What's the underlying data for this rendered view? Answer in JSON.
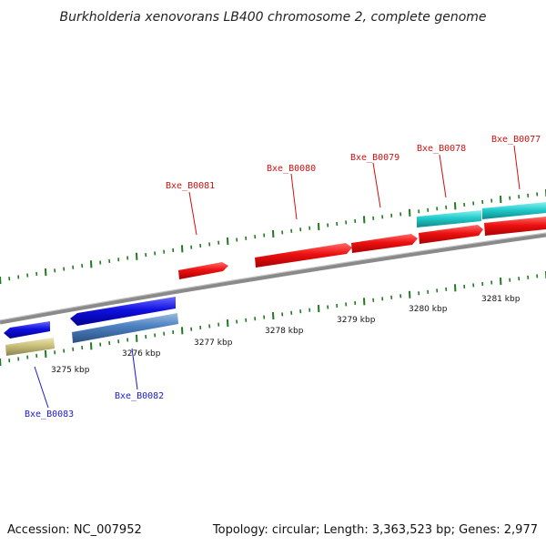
{
  "title": "Burkholderia xenovorans LB400 chromosome 2, complete genome",
  "footer": {
    "accession": "Accession: NC_007952",
    "stats": "Topology: circular; Length: 3,363,523 bp; Genes: 2,977"
  },
  "tick_labels": [
    "3275 kbp",
    "3276 kbp",
    "3277 kbp",
    "3278 kbp",
    "3279 kbp",
    "3280 kbp",
    "3281 kbp"
  ],
  "gene_labels_forward": [
    "Bxe_B0081",
    "Bxe_B0080",
    "Bxe_B0079",
    "Bxe_B0078",
    "Bxe_B0077"
  ],
  "gene_labels_reverse": [
    "Bxe_B0082",
    "Bxe_B0083"
  ],
  "colors": {
    "forward_label": "#d01010",
    "reverse_label": "#1a1acc",
    "cds_forward": "#ee1111",
    "cds_reverse": "#1010e0",
    "rna_forward": "#22cccc",
    "rna_reverse": "#4a7fc0",
    "pseudo": "#c8bf7a",
    "backbone": "#8a8a8a",
    "ticks": "#1e7a1e"
  }
}
